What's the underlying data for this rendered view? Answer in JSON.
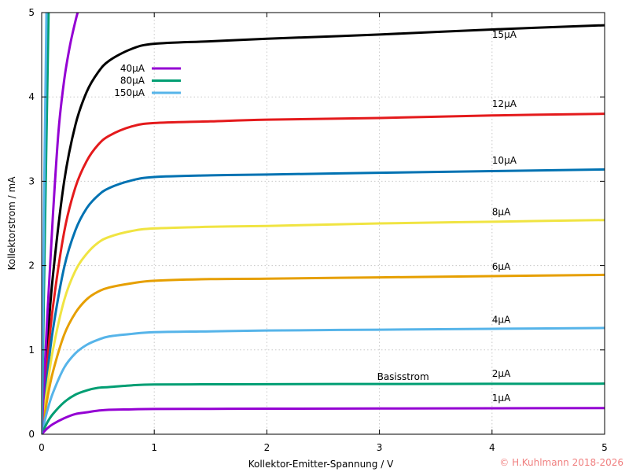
{
  "chart_data": {
    "type": "line",
    "title": "",
    "xlabel": "Kollektor-Emitter-Spannung / V",
    "ylabel": "Kollektorstrom / mA",
    "xlim": [
      0,
      5
    ],
    "ylim": [
      0,
      5
    ],
    "xticks": [
      "0",
      "1",
      "2",
      "3",
      "4",
      "5"
    ],
    "yticks": [
      "0",
      "1",
      "2",
      "3",
      "4",
      "5"
    ],
    "grid": true,
    "legend_placement": "top-left",
    "annotation": "Basisstrom",
    "annotation_pos": {
      "x": 3.0,
      "y": 0.68
    },
    "copyright": "© H.Kuhlmann 2018-2026",
    "series": [
      {
        "name": "15µA",
        "color": "#000000",
        "label_at": [
          4,
          4.7
        ],
        "x": [
          0,
          0.05,
          0.1,
          0.2,
          0.3,
          0.4,
          0.5,
          0.6,
          0.8,
          1,
          1.5,
          2,
          3,
          4,
          5
        ],
        "y": [
          0,
          1.06,
          1.88,
          3.0,
          3.67,
          4.06,
          4.29,
          4.43,
          4.57,
          4.63,
          4.66,
          4.69,
          4.74,
          4.8,
          4.85
        ]
      },
      {
        "name": "12µA",
        "color": "#e41a1c",
        "label_at": [
          4,
          3.88
        ],
        "x": [
          0,
          0.05,
          0.1,
          0.2,
          0.3,
          0.4,
          0.5,
          0.6,
          0.8,
          1,
          1.5,
          2,
          3,
          4,
          5
        ],
        "y": [
          0,
          0.85,
          1.51,
          2.4,
          2.93,
          3.24,
          3.43,
          3.54,
          3.65,
          3.69,
          3.71,
          3.73,
          3.75,
          3.78,
          3.8
        ]
      },
      {
        "name": "10µA",
        "color": "#0072b2",
        "label_at": [
          4,
          3.21
        ],
        "x": [
          0,
          0.05,
          0.1,
          0.2,
          0.3,
          0.4,
          0.5,
          0.6,
          0.8,
          1,
          1.5,
          2,
          3,
          4,
          5
        ],
        "y": [
          0,
          0.7,
          1.24,
          1.98,
          2.42,
          2.68,
          2.83,
          2.92,
          3.01,
          3.05,
          3.07,
          3.08,
          3.1,
          3.12,
          3.14
        ]
      },
      {
        "name": "8µA",
        "color": "#f0e442",
        "label_at": [
          4,
          2.6
        ],
        "x": [
          0,
          0.05,
          0.1,
          0.2,
          0.3,
          0.4,
          0.5,
          0.6,
          0.8,
          1,
          1.5,
          2,
          3,
          4,
          5
        ],
        "y": [
          0,
          0.56,
          1.0,
          1.59,
          1.94,
          2.14,
          2.27,
          2.34,
          2.41,
          2.44,
          2.46,
          2.47,
          2.5,
          2.52,
          2.54
        ]
      },
      {
        "name": "6µA",
        "color": "#e69f00",
        "label_at": [
          4,
          1.95
        ],
        "x": [
          0,
          0.05,
          0.1,
          0.2,
          0.3,
          0.4,
          0.5,
          0.6,
          0.8,
          1,
          1.5,
          2,
          3,
          4,
          5
        ],
        "y": [
          0,
          0.42,
          0.74,
          1.18,
          1.44,
          1.6,
          1.69,
          1.74,
          1.79,
          1.82,
          1.84,
          1.845,
          1.86,
          1.875,
          1.89
        ]
      },
      {
        "name": "4µA",
        "color": "#56b4e9",
        "label_at": [
          4,
          1.32
        ],
        "x": [
          0,
          0.05,
          0.1,
          0.2,
          0.3,
          0.4,
          0.5,
          0.6,
          0.8,
          1,
          1.5,
          2,
          3,
          4,
          5
        ],
        "y": [
          0,
          0.28,
          0.49,
          0.79,
          0.96,
          1.06,
          1.12,
          1.16,
          1.19,
          1.21,
          1.22,
          1.23,
          1.24,
          1.25,
          1.26
        ]
      },
      {
        "name": "2µA",
        "color": "#009e73",
        "label_at": [
          4,
          0.68
        ],
        "x": [
          0,
          0.05,
          0.1,
          0.2,
          0.3,
          0.4,
          0.5,
          0.6,
          0.8,
          1,
          1.5,
          2,
          3,
          4,
          5
        ],
        "y": [
          0,
          0.14,
          0.24,
          0.38,
          0.47,
          0.52,
          0.55,
          0.56,
          0.58,
          0.59,
          0.592,
          0.594,
          0.596,
          0.598,
          0.6
        ]
      },
      {
        "name": "1µA",
        "color": "#9400d3",
        "label_at": [
          4,
          0.39
        ],
        "x": [
          0,
          0.05,
          0.1,
          0.2,
          0.3,
          0.4,
          0.5,
          0.6,
          0.8,
          1,
          1.5,
          2,
          3,
          4,
          5
        ],
        "y": [
          0,
          0.07,
          0.12,
          0.19,
          0.24,
          0.26,
          0.28,
          0.29,
          0.295,
          0.3,
          0.301,
          0.303,
          0.305,
          0.308,
          0.31
        ]
      },
      {
        "name": "40µA",
        "color": "#9400d3",
        "legend": true,
        "x": [
          0,
          0.05,
          0.1,
          0.15,
          0.2,
          0.25,
          0.3,
          0.33
        ],
        "y": [
          0,
          1.4,
          2.6,
          3.6,
          4.2,
          4.6,
          4.9,
          5.05
        ]
      },
      {
        "name": "80µA",
        "color": "#009e73",
        "legend": true,
        "x": [
          0,
          0.03,
          0.062
        ],
        "y": [
          0,
          2.5,
          5.05
        ]
      },
      {
        "name": "150µA",
        "color": "#56b4e9",
        "legend": true,
        "x": [
          0,
          0.02,
          0.043
        ],
        "y": [
          0,
          2.6,
          5.05
        ]
      }
    ]
  }
}
